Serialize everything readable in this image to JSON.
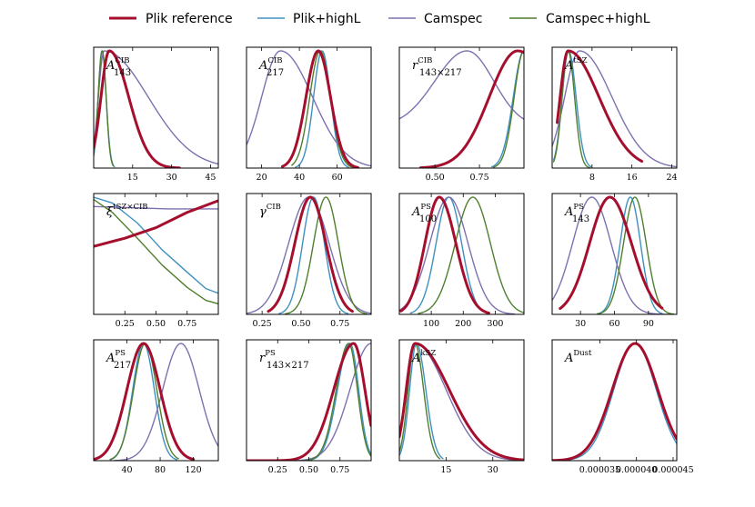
{
  "chart_data": {
    "type": "line",
    "description_kind": "grid of 1D marginal posterior distributions",
    "legend": [
      {
        "label": "Plik reference",
        "color": "#A50F2D",
        "width": 3
      },
      {
        "label": "Plik+highL",
        "color": "#3E90C0",
        "width": 1.4
      },
      {
        "label": "Camspec",
        "color": "#7E70B0",
        "width": 1.4
      },
      {
        "label": "Camspec+highL",
        "color": "#4F7F2E",
        "width": 1.4
      }
    ],
    "panels": [
      {
        "id": "A_143_CIB",
        "label": "A",
        "sup": "CIB",
        "sub": "143",
        "xlim": [
          0,
          48
        ],
        "ticks": [
          15,
          30,
          45
        ],
        "tick_labels": [
          "15",
          "30",
          "45"
        ],
        "series": [
          {
            "name": "Plik reference",
            "type": "gauss",
            "mu": 6,
            "sl": 3.2,
            "sr": 7.5,
            "start": 0,
            "end": 33
          },
          {
            "name": "Plik+highL",
            "type": "gauss",
            "mu": 3.2,
            "sl": 1.5,
            "sr": 1.6,
            "start": 0,
            "end": 8
          },
          {
            "name": "Camspec",
            "type": "gauss",
            "mu": 4,
            "sl": 2.2,
            "sr": 17,
            "start": 0,
            "end": 48
          },
          {
            "name": "Camspec+highL",
            "type": "gauss",
            "mu": 3.3,
            "sl": 1.6,
            "sr": 1.5,
            "start": 0,
            "end": 7.5
          }
        ]
      },
      {
        "id": "A_217_CIB",
        "label": "A",
        "sup": "CIB",
        "sub": "217",
        "xlim": [
          12,
          78
        ],
        "ticks": [
          20,
          40,
          60
        ],
        "tick_labels": [
          "20",
          "40",
          "60"
        ],
        "series": [
          {
            "name": "Plik reference",
            "type": "gauss",
            "mu": 50,
            "sl": 6.5,
            "sr": 6.5,
            "start": 31,
            "end": 71
          },
          {
            "name": "Plik+highL",
            "type": "gauss",
            "mu": 52,
            "sl": 4.5,
            "sr": 4.5,
            "start": 38,
            "end": 66
          },
          {
            "name": "Camspec",
            "type": "gauss",
            "mu": 30,
            "sl": 10,
            "sr": 17,
            "start": 12,
            "end": 78
          },
          {
            "name": "Camspec+highL",
            "type": "gauss",
            "mu": 51,
            "sl": 5.5,
            "sr": 5.5,
            "start": 36,
            "end": 68
          }
        ]
      },
      {
        "id": "r_CIB",
        "label": "r",
        "sup": "CIB",
        "sub": "143×217",
        "xlim": [
          0.3,
          1.0
        ],
        "ticks": [
          0.5,
          0.75
        ],
        "tick_labels": [
          "0.50",
          "0.75"
        ],
        "series": [
          {
            "name": "Plik reference",
            "type": "gauss",
            "mu": 0.965,
            "sl": 0.16,
            "sr": 0.2,
            "start": 0.42,
            "end": 1.0
          },
          {
            "name": "Plik+highL",
            "type": "gauss",
            "mu": 1.0,
            "sl": 0.06,
            "sr": 0.1,
            "start": 0.82,
            "end": 1.0
          },
          {
            "name": "Camspec",
            "type": "gauss",
            "mu": 0.68,
            "sl": 0.18,
            "sr": 0.15,
            "start": 0.3,
            "end": 1.0,
            "floor": 0.35
          },
          {
            "name": "Camspec+highL",
            "type": "gauss",
            "mu": 1.0,
            "sl": 0.055,
            "sr": 0.1,
            "start": 0.83,
            "end": 1.0
          }
        ]
      },
      {
        "id": "A_tSZ",
        "label": "A",
        "sup": "tSZ",
        "sub": "",
        "xlim": [
          0,
          25
        ],
        "ticks": [
          8,
          16,
          24
        ],
        "tick_labels": [
          "8",
          "16",
          "24"
        ],
        "series": [
          {
            "name": "Plik reference",
            "type": "gauss",
            "mu": 3.2,
            "sl": 1.6,
            "sr": 6.2,
            "start": 1,
            "end": 18
          },
          {
            "name": "Plik+highL",
            "type": "gauss",
            "mu": 3.3,
            "sl": 1.3,
            "sr": 1.5,
            "start": 0.3,
            "end": 7.8
          },
          {
            "name": "Camspec",
            "type": "gauss",
            "mu": 5.5,
            "sl": 3,
            "sr": 6.5,
            "start": 0,
            "end": 25
          },
          {
            "name": "Camspec+highL",
            "type": "gauss",
            "mu": 3.2,
            "sl": 1.2,
            "sr": 1.3,
            "start": 0.3,
            "end": 7.5
          }
        ]
      },
      {
        "id": "xi",
        "label": "ξ",
        "sup": "tSZ×CIB",
        "sub": "",
        "xlim": [
          0,
          1
        ],
        "ticks": [
          0.25,
          0.5,
          0.75
        ],
        "tick_labels": [
          "0.25",
          "0.50",
          "0.75"
        ],
        "series": [
          {
            "name": "Plik reference",
            "type": "poly",
            "pts": [
              [
                0,
                0.58
              ],
              [
                0.25,
                0.65
              ],
              [
                0.5,
                0.74
              ],
              [
                0.75,
                0.87
              ],
              [
                1,
                0.97
              ]
            ]
          },
          {
            "name": "Plik+highL",
            "type": "poly",
            "pts": [
              [
                0,
                1.0
              ],
              [
                0.15,
                0.95
              ],
              [
                0.35,
                0.78
              ],
              [
                0.55,
                0.55
              ],
              [
                0.75,
                0.36
              ],
              [
                0.9,
                0.22
              ],
              [
                1,
                0.18
              ]
            ]
          },
          {
            "name": "Camspec",
            "type": "poly",
            "pts": [
              [
                0,
                0.92
              ],
              [
                0.3,
                0.91
              ],
              [
                0.6,
                0.9
              ],
              [
                0.8,
                0.9
              ],
              [
                1,
                0.9
              ]
            ]
          },
          {
            "name": "Camspec+highL",
            "type": "poly",
            "pts": [
              [
                0,
                0.98
              ],
              [
                0.15,
                0.87
              ],
              [
                0.35,
                0.65
              ],
              [
                0.55,
                0.42
              ],
              [
                0.75,
                0.23
              ],
              [
                0.9,
                0.12
              ],
              [
                1,
                0.09
              ]
            ]
          }
        ]
      },
      {
        "id": "gamma_CIB",
        "label": "γ",
        "sup": "CIB",
        "sub": "",
        "xlim": [
          0.15,
          0.95
        ],
        "ticks": [
          0.25,
          0.5,
          0.75
        ],
        "tick_labels": [
          "0.25",
          "0.50",
          "0.75"
        ],
        "series": [
          {
            "name": "Plik reference",
            "type": "gauss",
            "mu": 0.56,
            "sl": 0.1,
            "sr": 0.1,
            "start": 0.29,
            "end": 0.83
          },
          {
            "name": "Plik+highL",
            "type": "gauss",
            "mu": 0.58,
            "sl": 0.07,
            "sr": 0.07,
            "start": 0.36,
            "end": 0.8
          },
          {
            "name": "Camspec",
            "type": "gauss",
            "mu": 0.55,
            "sl": 0.13,
            "sr": 0.13,
            "start": 0.15,
            "end": 0.95
          },
          {
            "name": "Camspec+highL",
            "type": "gauss",
            "mu": 0.66,
            "sl": 0.08,
            "sr": 0.08,
            "start": 0.4,
            "end": 0.92
          }
        ]
      },
      {
        "id": "A_100_PS",
        "label": "A",
        "sup": "PS",
        "sub": "100",
        "xlim": [
          0,
          390
        ],
        "ticks": [
          100,
          200,
          300
        ],
        "tick_labels": [
          "100",
          "200",
          "300"
        ],
        "series": [
          {
            "name": "Plik reference",
            "type": "gauss",
            "mu": 125,
            "sl": 45,
            "sr": 52,
            "start": 5,
            "end": 280
          },
          {
            "name": "Plik+highL",
            "type": "gauss",
            "mu": 155,
            "sl": 40,
            "sr": 40,
            "start": 35,
            "end": 275
          },
          {
            "name": "Camspec",
            "type": "gauss",
            "mu": 155,
            "sl": 60,
            "sr": 60,
            "start": 0,
            "end": 360
          },
          {
            "name": "Camspec+highL",
            "type": "gauss",
            "mu": 230,
            "sl": 55,
            "sr": 55,
            "start": 60,
            "end": 390
          }
        ]
      },
      {
        "id": "A_143_PS",
        "label": "A",
        "sup": "PS",
        "sub": "143",
        "xlim": [
          5,
          115
        ],
        "ticks": [
          30,
          60,
          90
        ],
        "tick_labels": [
          "30",
          "60",
          "90"
        ],
        "series": [
          {
            "name": "Plik reference",
            "type": "gauss",
            "mu": 56,
            "sl": 18,
            "sr": 19,
            "start": 12,
            "end": 102
          },
          {
            "name": "Plik+highL",
            "type": "gauss",
            "mu": 74,
            "sl": 9,
            "sr": 9,
            "start": 45,
            "end": 102
          },
          {
            "name": "Camspec",
            "type": "gauss",
            "mu": 40,
            "sl": 17,
            "sr": 17,
            "start": 5,
            "end": 110
          },
          {
            "name": "Camspec+highL",
            "type": "gauss",
            "mu": 78,
            "sl": 10,
            "sr": 10,
            "start": 45,
            "end": 112
          }
        ]
      },
      {
        "id": "A_217_PS",
        "label": "A",
        "sup": "PS",
        "sub": "217",
        "xlim": [
          0,
          150
        ],
        "ticks": [
          40,
          80,
          120
        ],
        "tick_labels": [
          "40",
          "80",
          "120"
        ],
        "series": [
          {
            "name": "Plik reference",
            "type": "gauss",
            "mu": 60,
            "sl": 20,
            "sr": 20,
            "start": 0,
            "end": 120
          },
          {
            "name": "Plik+highL",
            "type": "gauss",
            "mu": 60,
            "sl": 13,
            "sr": 13,
            "start": 20,
            "end": 100
          },
          {
            "name": "Camspec",
            "type": "gauss",
            "mu": 105,
            "sl": 22,
            "sr": 22,
            "start": 25,
            "end": 150
          },
          {
            "name": "Camspec+highL",
            "type": "gauss",
            "mu": 62,
            "sl": 14,
            "sr": 14,
            "start": 20,
            "end": 102
          }
        ]
      },
      {
        "id": "r_PS",
        "label": "r",
        "sup": "PS",
        "sub": "143×217",
        "xlim": [
          0,
          1
        ],
        "ticks": [
          0.25,
          0.5,
          0.75
        ],
        "tick_labels": [
          "0.25",
          "0.50",
          "0.75"
        ],
        "series": [
          {
            "name": "Plik reference",
            "type": "gauss",
            "mu": 0.86,
            "sl": 0.16,
            "sr": 0.09,
            "start": 0.0,
            "end": 1.0
          },
          {
            "name": "Plik+highL",
            "type": "gauss",
            "mu": 0.83,
            "sl": 0.1,
            "sr": 0.07,
            "start": 0.45,
            "end": 1.0
          },
          {
            "name": "Camspec",
            "type": "gauss",
            "mu": 1.0,
            "sl": 0.17,
            "sr": 0.1,
            "start": 0.35,
            "end": 1.0
          },
          {
            "name": "Camspec+highL",
            "type": "gauss",
            "mu": 0.82,
            "sl": 0.1,
            "sr": 0.07,
            "start": 0.45,
            "end": 1.0
          }
        ]
      },
      {
        "id": "A_kSZ",
        "label": "A",
        "sup": "kSZ",
        "sub": "",
        "xlim": [
          0,
          40
        ],
        "ticks": [
          15,
          30
        ],
        "tick_labels": [
          "15",
          "30"
        ],
        "series": [
          {
            "name": "Plik reference",
            "type": "gauss",
            "mu": 5,
            "sl": 2.8,
            "sr": 11,
            "start": 0,
            "end": 40
          },
          {
            "name": "Plik+highL",
            "type": "gauss",
            "mu": 5.5,
            "sl": 2.2,
            "sr": 3,
            "start": 0,
            "end": 14
          },
          {
            "name": "Camspec",
            "type": "gauss",
            "mu": 5,
            "sl": 2.8,
            "sr": 10,
            "start": 0,
            "end": 38
          },
          {
            "name": "Camspec+highL",
            "type": "gauss",
            "mu": 5,
            "sl": 2.2,
            "sr": 2.8,
            "start": 0,
            "end": 13
          }
        ]
      },
      {
        "id": "A_Dust",
        "label": "A",
        "sup": "Dust",
        "sub": "",
        "xlim": [
          2.85e-05,
          4.55e-05
        ],
        "ticks": [
          3.5e-05,
          4e-05,
          4.5e-05
        ],
        "tick_labels": [
          "0.000035",
          "0.000040",
          "0.000045"
        ],
        "series": [
          {
            "name": "Plik reference",
            "type": "gauss",
            "mu": 3.98e-05,
            "sl": 3.1e-06,
            "sr": 3.1e-06,
            "start": 2.85e-05,
            "end": 4.55e-05
          },
          {
            "name": "Plik+highL",
            "type": "gauss",
            "mu": 3.98e-05,
            "sl": 2.9e-06,
            "sr": 2.9e-06,
            "start": 2.85e-05,
            "end": 4.55e-05
          }
        ]
      }
    ]
  }
}
